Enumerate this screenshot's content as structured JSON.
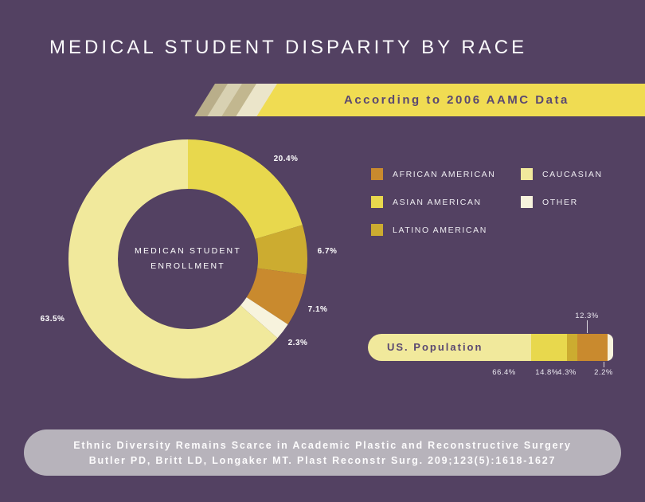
{
  "title": "MEDICAL STUDENT DISPARITY BY RACE",
  "banner": {
    "label": "According to 2006 AAMC Data"
  },
  "legend": {
    "items": [
      {
        "label": "AFRICAN AMERICAN",
        "color": "#c98a2e"
      },
      {
        "label": "ASIAN AMERICAN",
        "color": "#e8d84d"
      },
      {
        "label": "LATINO AMERICAN",
        "color": "#ccac30"
      },
      {
        "label": "CAUCASIAN",
        "color": "#f1e99c"
      },
      {
        "label": "OTHER",
        "color": "#f7f3dd"
      }
    ]
  },
  "chart_data": [
    {
      "type": "pie",
      "variant": "donut",
      "center_label_line1": "MEDICAN STUDENT",
      "center_label_line2": "ENROLLMENT",
      "categories": [
        "ASIAN AMERICAN",
        "LATINO AMERICAN",
        "AFRICAN AMERICAN",
        "OTHER",
        "CAUCASIAN"
      ],
      "values": [
        20.4,
        6.7,
        7.1,
        2.3,
        63.5
      ],
      "labels": [
        "20.4%",
        "6.7%",
        "7.1%",
        "2.3%",
        "63.5%"
      ],
      "colors": [
        "#e8d84d",
        "#ccac30",
        "#c98a2e",
        "#f7f3dd",
        "#f1e99c"
      ],
      "start_angle_deg": 0,
      "direction": "clockwise"
    },
    {
      "type": "bar",
      "variant": "stacked-horizontal",
      "title": "US. Population",
      "categories": [
        "CAUCASIAN",
        "ASIAN AMERICAN",
        "LATINO AMERICAN",
        "AFRICAN AMERICAN",
        "OTHER"
      ],
      "values": [
        66.4,
        14.8,
        4.3,
        12.3,
        2.2
      ],
      "labels": [
        "66.4%",
        "14.8%",
        "4.3%",
        "12.3%",
        "2.2%"
      ],
      "colors": [
        "#f1e99c",
        "#e8d84d",
        "#ccac30",
        "#c98a2e",
        "#f7f3dd"
      ],
      "xlim": [
        0,
        100
      ]
    }
  ],
  "footer": {
    "line1": "Ethnic Diversity Remains Scarce in Academic Plastic and Reconstructive Surgery",
    "line2": "Butler PD, Britt LD, Longaker MT. Plast Reconstr Surg. 209;123(5):1618-1627"
  }
}
